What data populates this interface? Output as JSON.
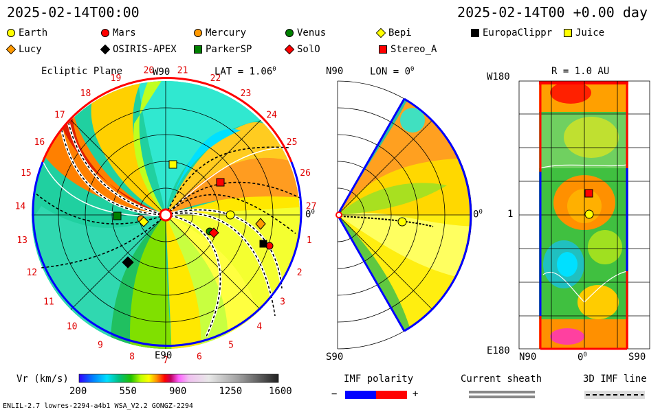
{
  "header": {
    "timestamp_left": "2025-02-14T00:00",
    "timestamp_right": "2025-02-14T00 +0.00 day"
  },
  "legend": [
    {
      "label": "Earth",
      "shape": "circle",
      "color": "#ffff00"
    },
    {
      "label": "Mars",
      "shape": "circle",
      "color": "#ff0000"
    },
    {
      "label": "Mercury",
      "shape": "circle",
      "color": "#ff9900"
    },
    {
      "label": "Venus",
      "shape": "circle",
      "color": "#008000"
    },
    {
      "label": "Bepi",
      "shape": "diamond",
      "color": "#ffff00"
    },
    {
      "label": "EuropaClippr",
      "shape": "square",
      "color": "#000000"
    },
    {
      "label": "Juice",
      "shape": "square",
      "color": "#ffff00"
    },
    {
      "label": "Lucy",
      "shape": "diamond",
      "color": "#ff9900"
    },
    {
      "label": "OSIRIS-APEX",
      "shape": "diamond",
      "color": "#000000"
    },
    {
      "label": "ParkerSP",
      "shape": "square",
      "color": "#008000"
    },
    {
      "label": "SolO",
      "shape": "diamond",
      "color": "#ff0000"
    },
    {
      "label": "Stereo_A",
      "shape": "square",
      "color": "#ff0000"
    }
  ],
  "panel_ecliptic": {
    "title": "Ecliptic Plane",
    "lat_label": "LAT = 1.06",
    "lat_deg": "0",
    "top_label": "W90",
    "bottom_label": "E90",
    "right_label": "0",
    "right_deg": "0",
    "carrington_labels": [
      "1",
      "2",
      "3",
      "4",
      "5",
      "6",
      "7",
      "8",
      "9",
      "10",
      "11",
      "12",
      "13",
      "14",
      "15",
      "16",
      "17",
      "18",
      "19",
      "20",
      "21",
      "22",
      "23",
      "24",
      "25",
      "26",
      "27"
    ]
  },
  "panel_meridional": {
    "top_label": "N90",
    "lon_label": "LON = 0",
    "lon_deg": "0",
    "right_label": "0",
    "right_deg": "0",
    "bottom_label": "S90"
  },
  "panel_sphere": {
    "title": "R = 1.0 AU",
    "top_left_label": "W180",
    "middle_left_label": "1",
    "bottom_left_label": "E180",
    "x_labels": [
      "N90",
      "0",
      "S90"
    ],
    "x_mid_deg": "0"
  },
  "colorbar": {
    "label": "Vr (km/s)",
    "ticks": [
      "200",
      "550",
      "900",
      "1250",
      "1600"
    ],
    "min": 200,
    "max": 1600
  },
  "imf_polarity": {
    "label": "IMF polarity",
    "minus": "−",
    "plus": "+",
    "neg_color": "#0000ff",
    "pos_color": "#ff0000"
  },
  "current_sheath": {
    "label": "Current sheath"
  },
  "imf_line": {
    "label": "3D IMF line"
  },
  "footer": {
    "left": "ENLIL-2.7 lowres-2294-a4b1 WSA_V2.2 GONGZ-2294"
  },
  "chart_data": {
    "type": "heatmap",
    "quantity": "Vr (km/s)",
    "range": [
      200,
      1600
    ],
    "bodies_ecliptic": [
      {
        "name": "Earth",
        "lon_deg": 0,
        "r_au": 1.0
      },
      {
        "name": "Mercury",
        "lon_deg": 180,
        "r_au": 0.33
      },
      {
        "name": "Mars",
        "lon_deg": -25,
        "r_au": 1.55
      },
      {
        "name": "Venus",
        "lon_deg": -32,
        "r_au": 0.72
      },
      {
        "name": "Stereo_A",
        "lon_deg": 40,
        "r_au": 0.96
      },
      {
        "name": "Juice",
        "lon_deg": 75,
        "r_au": 0.73
      }
    ]
  }
}
